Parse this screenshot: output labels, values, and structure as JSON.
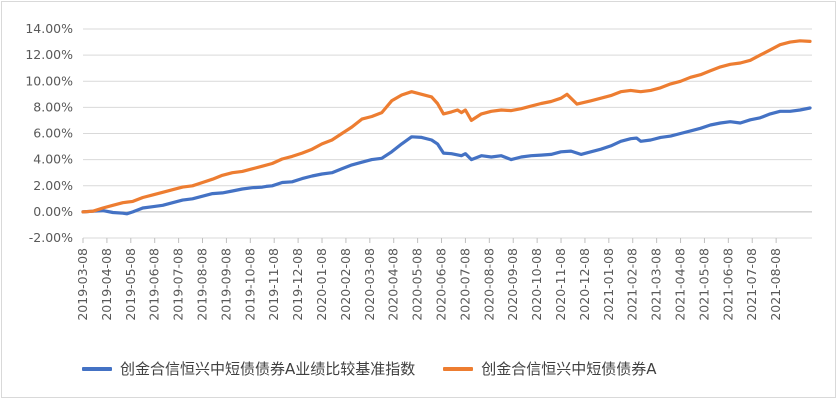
{
  "chart_data": {
    "type": "line",
    "title": "",
    "xlabel": "",
    "ylabel": "",
    "ylim": [
      -0.02,
      0.14
    ],
    "yticks": [
      -0.02,
      0.0,
      0.02,
      0.04,
      0.06,
      0.08,
      0.1,
      0.12,
      0.14
    ],
    "ytick_labels": [
      "-2.00%",
      "0.00%",
      "2.00%",
      "4.00%",
      "6.00%",
      "8.00%",
      "10.00%",
      "12.00%",
      "14.00%"
    ],
    "x_labels": [
      "2019-03-08",
      "2019-04-08",
      "2019-05-08",
      "2019-06-08",
      "2019-07-08",
      "2019-08-08",
      "2019-09-08",
      "2019-10-08",
      "2019-11-08",
      "2019-12-08",
      "2020-01-08",
      "2020-02-08",
      "2020-03-08",
      "2020-04-08",
      "2020-05-08",
      "2020-06-08",
      "2020-07-08",
      "2020-08-08",
      "2020-09-08",
      "2020-10-08",
      "2020-11-08",
      "2020-12-08",
      "2021-01-08",
      "2021-02-08",
      "2021-03-08",
      "2021-04-08",
      "2021-05-08",
      "2021-06-08",
      "2021-07-08",
      "2021-08-08"
    ],
    "x_max": 30.9,
    "grid": "horizontal",
    "legend_position": "bottom",
    "series": [
      {
        "name": "创金合信恒兴中短债债券A业绩比较基准指数",
        "color": "#4472c4",
        "points": [
          [
            0,
            0
          ],
          [
            0.5,
            0.0005
          ],
          [
            1,
            0.001
          ],
          [
            1.5,
            -0.0005
          ],
          [
            2,
            -0.001
          ],
          [
            2.2,
            -0.0015
          ],
          [
            2.5,
            0.0
          ],
          [
            3,
            0.003
          ],
          [
            3.5,
            0.004
          ],
          [
            4,
            0.005
          ],
          [
            4.5,
            0.007
          ],
          [
            5,
            0.009
          ],
          [
            5.5,
            0.01
          ],
          [
            6,
            0.012
          ],
          [
            6.5,
            0.014
          ],
          [
            7,
            0.0145
          ],
          [
            7.5,
            0.016
          ],
          [
            8,
            0.0175
          ],
          [
            8.5,
            0.0185
          ],
          [
            9,
            0.019
          ],
          [
            9.2,
            0.0195
          ],
          [
            9.5,
            0.02
          ],
          [
            10,
            0.0225
          ],
          [
            10.5,
            0.023
          ],
          [
            11,
            0.0255
          ],
          [
            11.5,
            0.0275
          ],
          [
            12,
            0.029
          ],
          [
            12.5,
            0.03
          ],
          [
            13,
            0.033
          ],
          [
            13.5,
            0.036
          ],
          [
            14,
            0.038
          ],
          [
            14.5,
            0.04
          ],
          [
            15,
            0.041
          ],
          [
            15.5,
            0.046
          ],
          [
            16,
            0.052
          ],
          [
            16.5,
            0.0575
          ],
          [
            17,
            0.057
          ],
          [
            17.5,
            0.055
          ],
          [
            17.8,
            0.052
          ],
          [
            18.1,
            0.045
          ],
          [
            18.5,
            0.0445
          ],
          [
            19,
            0.043
          ],
          [
            19.2,
            0.0445
          ],
          [
            19.5,
            0.04
          ],
          [
            20,
            0.043
          ],
          [
            20.5,
            0.042
          ],
          [
            21,
            0.043
          ],
          [
            21.5,
            0.04
          ],
          [
            22,
            0.042
          ],
          [
            22.5,
            0.043
          ],
          [
            23,
            0.0435
          ],
          [
            23.5,
            0.044
          ],
          [
            24,
            0.046
          ],
          [
            24.5,
            0.0465
          ],
          [
            25,
            0.044
          ],
          [
            25.5,
            0.046
          ],
          [
            26,
            0.048
          ],
          [
            26.5,
            0.0505
          ],
          [
            27,
            0.054
          ],
          [
            27.5,
            0.056
          ],
          [
            27.8,
            0.0565
          ],
          [
            28,
            0.054
          ],
          [
            28.5,
            0.055
          ],
          [
            29,
            0.057
          ],
          [
            29.5,
            0.058
          ],
          [
            30,
            0.06
          ],
          [
            30.5,
            0.062
          ],
          [
            31,
            0.064
          ],
          [
            31.5,
            0.0665
          ],
          [
            32,
            0.068
          ],
          [
            32.5,
            0.069
          ],
          [
            33,
            0.068
          ],
          [
            33.5,
            0.0705
          ],
          [
            34,
            0.072
          ],
          [
            34.5,
            0.075
          ],
          [
            35,
            0.077
          ],
          [
            35.5,
            0.077
          ],
          [
            36,
            0.078
          ],
          [
            36.5,
            0.0795
          ]
        ]
      },
      {
        "name": "创金合信恒兴中短债债券A",
        "color": "#ed7d31",
        "points": [
          [
            0,
            0
          ],
          [
            0.5,
            0.0005
          ],
          [
            1,
            0.003
          ],
          [
            1.5,
            0.005
          ],
          [
            2,
            0.007
          ],
          [
            2.5,
            0.008
          ],
          [
            3,
            0.011
          ],
          [
            3.5,
            0.013
          ],
          [
            4,
            0.015
          ],
          [
            4.5,
            0.017
          ],
          [
            5,
            0.019
          ],
          [
            5.5,
            0.02
          ],
          [
            6,
            0.0225
          ],
          [
            6.5,
            0.025
          ],
          [
            7,
            0.028
          ],
          [
            7.5,
            0.03
          ],
          [
            8,
            0.031
          ],
          [
            8.5,
            0.033
          ],
          [
            9,
            0.035
          ],
          [
            9.5,
            0.037
          ],
          [
            10,
            0.0405
          ],
          [
            10.5,
            0.0425
          ],
          [
            11,
            0.045
          ],
          [
            11.5,
            0.048
          ],
          [
            12,
            0.052
          ],
          [
            12.5,
            0.055
          ],
          [
            13,
            0.06
          ],
          [
            13.5,
            0.065
          ],
          [
            14,
            0.071
          ],
          [
            14.5,
            0.073
          ],
          [
            15,
            0.076
          ],
          [
            15.5,
            0.085
          ],
          [
            16,
            0.0895
          ],
          [
            16.5,
            0.092
          ],
          [
            17,
            0.09
          ],
          [
            17.5,
            0.088
          ],
          [
            17.8,
            0.083
          ],
          [
            18.1,
            0.075
          ],
          [
            18.5,
            0.0765
          ],
          [
            18.8,
            0.078
          ],
          [
            19,
            0.076
          ],
          [
            19.2,
            0.078
          ],
          [
            19.5,
            0.07
          ],
          [
            20,
            0.075
          ],
          [
            20.5,
            0.077
          ],
          [
            21,
            0.078
          ],
          [
            21.5,
            0.0775
          ],
          [
            22,
            0.079
          ],
          [
            22.5,
            0.081
          ],
          [
            23,
            0.083
          ],
          [
            23.5,
            0.0845
          ],
          [
            24,
            0.087
          ],
          [
            24.3,
            0.09
          ],
          [
            24.8,
            0.0825
          ],
          [
            25.5,
            0.085
          ],
          [
            26,
            0.087
          ],
          [
            26.5,
            0.089
          ],
          [
            27,
            0.092
          ],
          [
            27.5,
            0.093
          ],
          [
            28,
            0.092
          ],
          [
            28.5,
            0.093
          ],
          [
            29,
            0.095
          ],
          [
            29.5,
            0.098
          ],
          [
            30,
            0.1
          ],
          [
            30.5,
            0.103
          ],
          [
            31,
            0.105
          ],
          [
            31.5,
            0.108
          ],
          [
            32,
            0.111
          ],
          [
            32.5,
            0.113
          ],
          [
            33,
            0.114
          ],
          [
            33.5,
            0.116
          ],
          [
            34,
            0.12
          ],
          [
            34.5,
            0.124
          ],
          [
            35,
            0.128
          ],
          [
            35.5,
            0.13
          ],
          [
            36,
            0.131
          ],
          [
            36.5,
            0.1305
          ]
        ]
      }
    ]
  }
}
